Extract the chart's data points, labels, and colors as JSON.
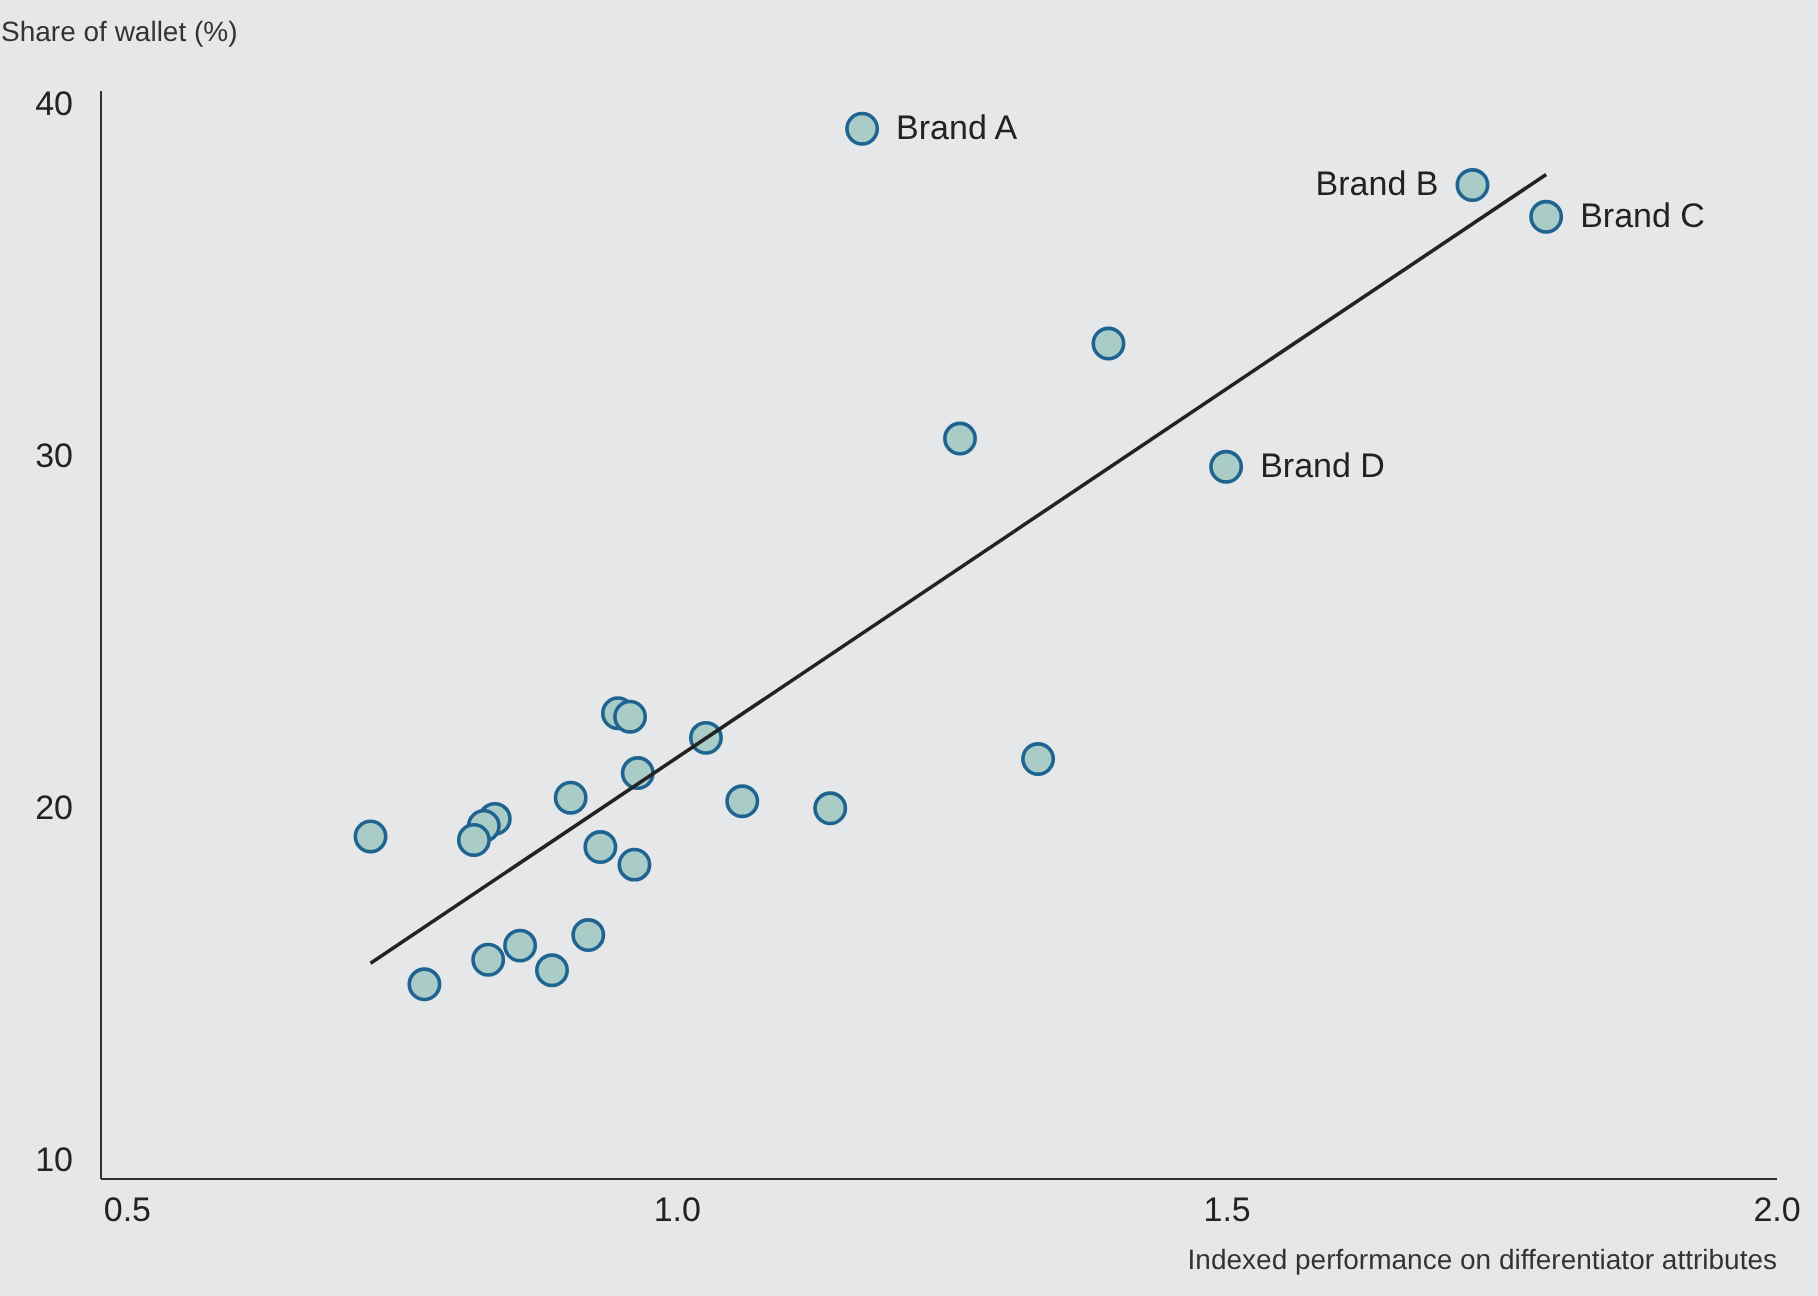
{
  "chart_data": {
    "type": "scatter",
    "ylabel": "Share of wallet (%)",
    "xlabel": "Indexed performance on differentiator attributes",
    "xlim": [
      0.476,
      2.0
    ],
    "xticks": [
      0.5,
      {
        "value": 1,
        "label": "1.0"
      },
      1.5,
      {
        "value": 2,
        "label": "2.0"
      }
    ],
    "ylim": [
      9.5,
      40.4
    ],
    "yticks": [
      10,
      20,
      30,
      40
    ],
    "grid": false,
    "series": [
      {
        "marker": "circle",
        "color": "#a9cdc6",
        "x": [
          1.169,
          1.724,
          1.791,
          1.393,
          1.258,
          1.5,
          0.947,
          0.958,
          1.027,
          0.965,
          1.329,
          0.904,
          1.06,
          1.14,
          0.722,
          0.835,
          0.825,
          0.816,
          0.931,
          0.962,
          0.92,
          0.858,
          0.829,
          0.887,
          0.771
        ],
        "values": [
          39.3,
          37.7,
          36.8,
          33.2,
          30.5,
          29.7,
          22.7,
          22.6,
          22.0,
          21.0,
          21.4,
          20.3,
          20.2,
          20.0,
          19.2,
          19.7,
          19.5,
          19.1,
          18.9,
          18.4,
          16.4,
          16.1,
          15.7,
          15.4,
          15.0
        ]
      },
      {
        "type": "line",
        "color": "#222222",
        "x": [
          0.722,
          1.791
        ],
        "values": [
          15.6,
          38.0
        ]
      }
    ],
    "annotations": [
      {
        "text": "Brand A",
        "x": 1.169,
        "y": 39.3
      },
      {
        "text": "Brand B",
        "x": 1.724,
        "y": 37.7
      },
      {
        "text": "Brand C",
        "x": 1.791,
        "y": 36.8
      },
      {
        "text": "Brand D",
        "x": 1.5,
        "y": 29.7
      }
    ]
  }
}
